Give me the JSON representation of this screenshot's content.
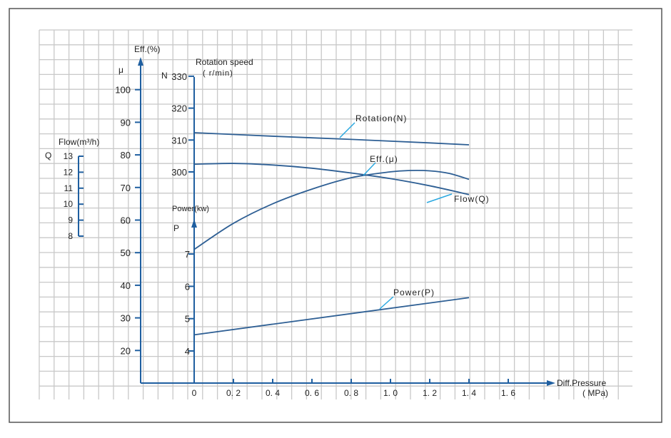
{
  "chart_data": {
    "type": "line",
    "title": "",
    "x": {
      "label": "Diff.Pressure",
      "unit": "( MPa)",
      "range": [
        0,
        1.6
      ],
      "ticks": [
        "0",
        "0. 2",
        "0. 4",
        "0. 6",
        "0. 8",
        "1. 0",
        "1. 2",
        "1. 4",
        "1. 6"
      ]
    },
    "axes": {
      "efficiency": {
        "label": "Eff.(%)",
        "symbol": "μ",
        "range": [
          20,
          100
        ],
        "ticks": [
          "20",
          "30",
          "40",
          "50",
          "60",
          "70",
          "80",
          "90",
          "100"
        ]
      },
      "rotation": {
        "label": "Rotation speed",
        "symbol": "N",
        "unit": "( r/min)",
        "range": [
          300,
          330
        ],
        "ticks": [
          "300",
          "310",
          "320",
          "330"
        ]
      },
      "flow": {
        "label": "Flow(m³/h)",
        "symbol": "Q",
        "range": [
          8,
          13
        ],
        "ticks": [
          "8",
          "9",
          "10",
          "11",
          "12",
          "13"
        ]
      },
      "power": {
        "label": "Power(kw)",
        "symbol": "P",
        "range": [
          4,
          7
        ],
        "ticks": [
          "4",
          "5",
          "6",
          "7"
        ]
      }
    },
    "series": [
      {
        "name": "Rotation(N)",
        "axis": "rotation",
        "color": "#2e5f94",
        "x": [
          0,
          0.4,
          0.8,
          1.2,
          1.4
        ],
        "y": [
          312.3,
          311.2,
          310.2,
          309.1,
          308.5
        ]
      },
      {
        "name": "Flow(Q)",
        "axis": "flow",
        "color": "#2e5f94",
        "x": [
          0,
          0.2,
          0.4,
          0.6,
          0.8,
          1.0,
          1.2,
          1.4
        ],
        "y": [
          12.5,
          12.55,
          12.45,
          12.25,
          11.95,
          11.6,
          11.15,
          10.6
        ]
      },
      {
        "name": "Eff.(μ)",
        "axis": "efficiency",
        "color": "#2e5f94",
        "x": [
          0,
          0.2,
          0.4,
          0.6,
          0.8,
          1.0,
          1.1,
          1.2,
          1.3,
          1.4
        ],
        "y": [
          51,
          59,
          65,
          69.5,
          73,
          74.8,
          75.2,
          75.1,
          74.3,
          72.5
        ]
      },
      {
        "name": "Power(P)",
        "axis": "power",
        "color": "#2e5f94",
        "x": [
          0,
          1.4
        ],
        "y": [
          4.5,
          5.65
        ]
      }
    ],
    "grid": true,
    "legend": "labels on curves"
  },
  "colors": {
    "axis": "#1f5fa0",
    "curve": "#2e5f94",
    "leader": "#2aa8e0",
    "grid": "#c8c8c8",
    "frame": "#555555"
  }
}
